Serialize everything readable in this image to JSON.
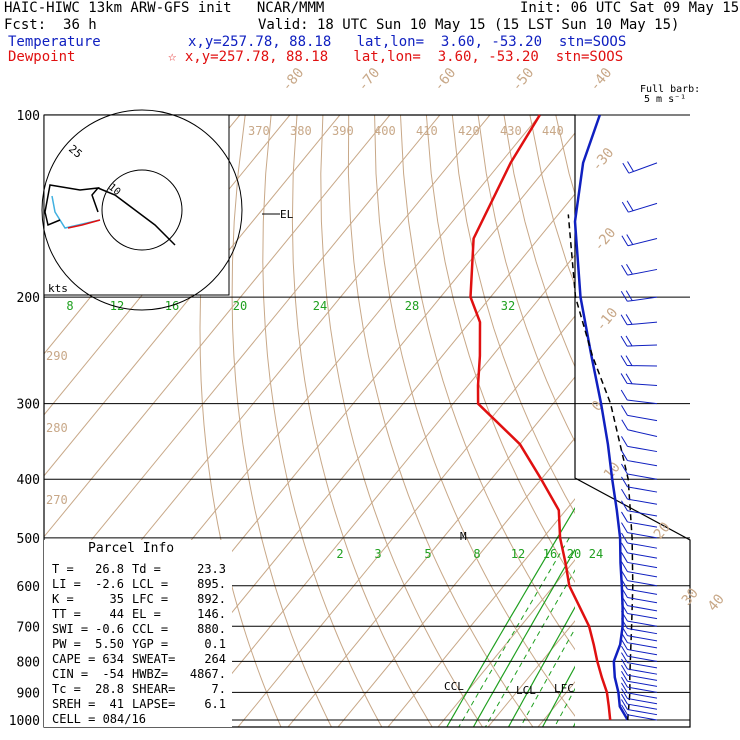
{
  "header": {
    "model": "HAIC-HIWC 13km ARW-GFS init",
    "org": "NCAR/MMM",
    "init": "Init: 06 UTC Sat 09 May 15",
    "fcst_label": "Fcst:",
    "fcst_value": "36 h",
    "valid": "Valid: 18 UTC Sun 10 May 15 (15 LST Sun 10 May 15)",
    "temp_label": "Temperature",
    "dew_label": "Dewpoint",
    "temp_info": "x,y=257.78, 88.18   lat,lon=  3.60, -53.20  stn=SOOS",
    "dew_info": "☆ x,y=257.78, 88.18   lat,lon=  3.60, -53.20  stn=SOOS",
    "barb_title1": "Full barb:",
    "barb_title2": "5 m s⁻¹"
  },
  "colors": {
    "temperature": "#1020c0",
    "dewpoint": "#e01010",
    "mixing": "#20a020",
    "dry": "#c8a888"
  },
  "chart_data": {
    "type": "line",
    "title": "Skew-T log-P",
    "pressure_labels": [
      "100",
      "200",
      "300",
      "400",
      "500",
      "600",
      "700",
      "800",
      "900",
      "1000"
    ],
    "pressure_levels": [
      100,
      200,
      300,
      400,
      500,
      600,
      700,
      800,
      900,
      1000
    ],
    "isotherm_labels": [
      "-80",
      "-70",
      "-60",
      "-50",
      "-40",
      "-30",
      "-20",
      "-10",
      "0",
      "10",
      "20",
      "30",
      "40"
    ],
    "theta_labels_upper": [
      "370",
      "380",
      "390",
      "400",
      "410",
      "420",
      "430",
      "440"
    ],
    "theta_labels_left": [
      "290",
      "280",
      "270"
    ],
    "mixing_labels_upper": [
      "8",
      "12",
      "16",
      "20",
      "24",
      "28",
      "32"
    ],
    "mixing_labels_lower": [
      "2",
      "3",
      "5",
      "8",
      "12",
      "16",
      "20",
      "24"
    ],
    "level_labels": {
      "el": "EL",
      "ccl": "CCL",
      "lcl": "LCL",
      "lfc": "LFC",
      "m": "M"
    },
    "series": [
      {
        "name": "Temperature",
        "points": [
          [
            1000,
            26.8
          ],
          [
            950,
            23
          ],
          [
            900,
            20.4
          ],
          [
            850,
            17.2
          ],
          [
            800,
            14.4
          ],
          [
            750,
            12.9
          ],
          [
            700,
            10.4
          ],
          [
            650,
            7.2
          ],
          [
            600,
            3.6
          ],
          [
            550,
            -0.4
          ],
          [
            500,
            -4.6
          ],
          [
            450,
            -9.8
          ],
          [
            400,
            -15.8
          ],
          [
            350,
            -22.4
          ],
          [
            300,
            -30.4
          ],
          [
            250,
            -40.2
          ],
          [
            200,
            -52
          ],
          [
            150,
            -65.5
          ],
          [
            120,
            -73.5
          ],
          [
            100,
            -78
          ]
        ]
      },
      {
        "name": "Dewpoint",
        "points": [
          [
            1000,
            23.3
          ],
          [
            950,
            20.8
          ],
          [
            900,
            18.1
          ],
          [
            850,
            14.6
          ],
          [
            800,
            11.1
          ],
          [
            750,
            7.6
          ],
          [
            700,
            3.7
          ],
          [
            650,
            -1.4
          ],
          [
            600,
            -6.9
          ],
          [
            550,
            -11.4
          ],
          [
            500,
            -16.6
          ],
          [
            450,
            -21.4
          ],
          [
            400,
            -30
          ],
          [
            350,
            -40
          ],
          [
            300,
            -55
          ],
          [
            280,
            -58
          ],
          [
            250,
            -62.5
          ],
          [
            220,
            -68
          ],
          [
            200,
            -74
          ],
          [
            160,
            -83
          ],
          [
            120,
            -88
          ],
          [
            100,
            -90
          ]
        ]
      }
    ]
  },
  "hodograph": {
    "ring_label": "25",
    "inner_label": "10",
    "units_label": "kts"
  },
  "parcel": {
    "title": "Parcel Info",
    "rows": [
      [
        "T  =",
        "26.8",
        "Td =",
        "23.3"
      ],
      [
        "LI =",
        "-2.6",
        "LCL =",
        "895."
      ],
      [
        "K  =",
        "35",
        "LFC =",
        "892."
      ],
      [
        "TT =",
        "44",
        "EL  =",
        "146."
      ],
      [
        "SWI =",
        "-0.6",
        "CCL =",
        "880."
      ],
      [
        "PW =",
        "5.50",
        "YGP =",
        "0.1"
      ],
      [
        "CAPE =",
        "634",
        "SWEAT=",
        "264"
      ],
      [
        "CIN =",
        "-54",
        "HWBZ=",
        "4867."
      ],
      [
        "Tc =",
        "28.8",
        "SHEAR=",
        "7."
      ],
      [
        "SREH =",
        "41",
        "LAPSE=",
        "6.1"
      ]
    ],
    "cell": "CELL = 084/16"
  }
}
